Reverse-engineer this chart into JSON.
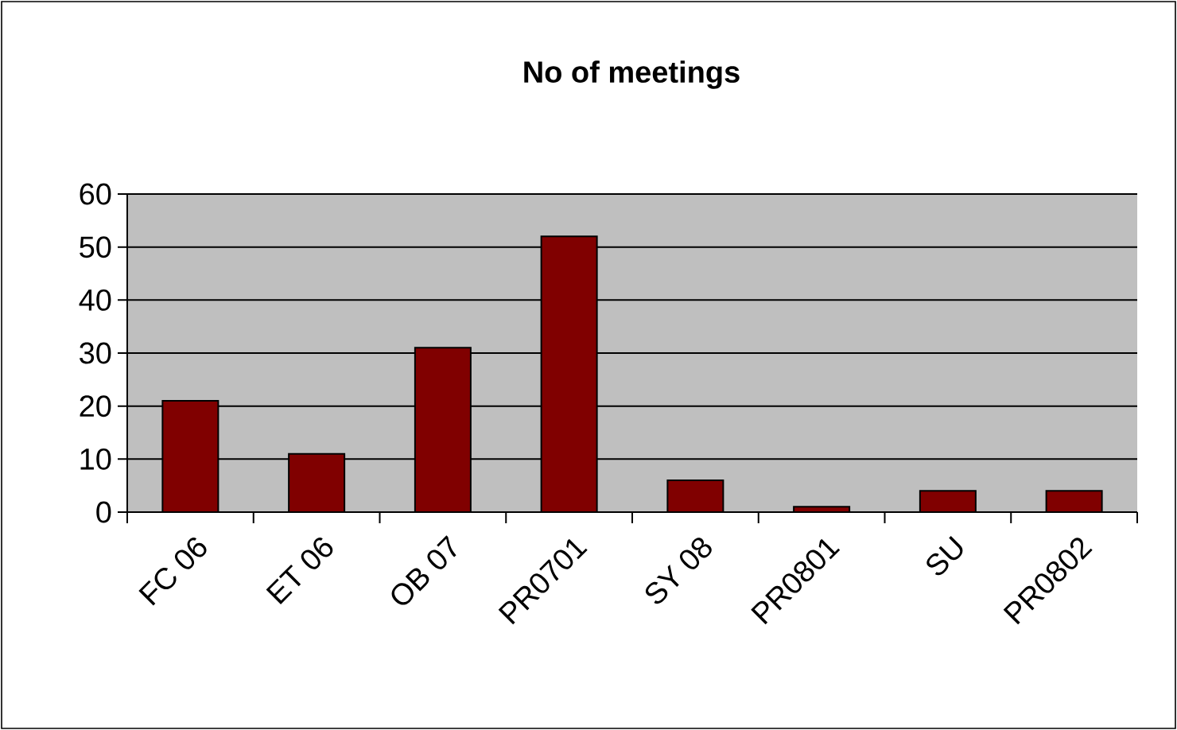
{
  "chart_data": {
    "type": "bar",
    "title": "No of meetings",
    "categories": [
      "FC 06",
      "ET 06",
      "OB 07",
      "PR0701",
      "SY 08",
      "PR0801",
      "SU",
      "PR0802"
    ],
    "values": [
      21,
      11,
      31,
      52,
      6,
      1,
      4,
      4
    ],
    "color": "#800000",
    "ylim": [
      0,
      60
    ],
    "yticks": [
      0,
      10,
      20,
      30,
      40,
      50,
      60
    ],
    "grid": "y"
  }
}
